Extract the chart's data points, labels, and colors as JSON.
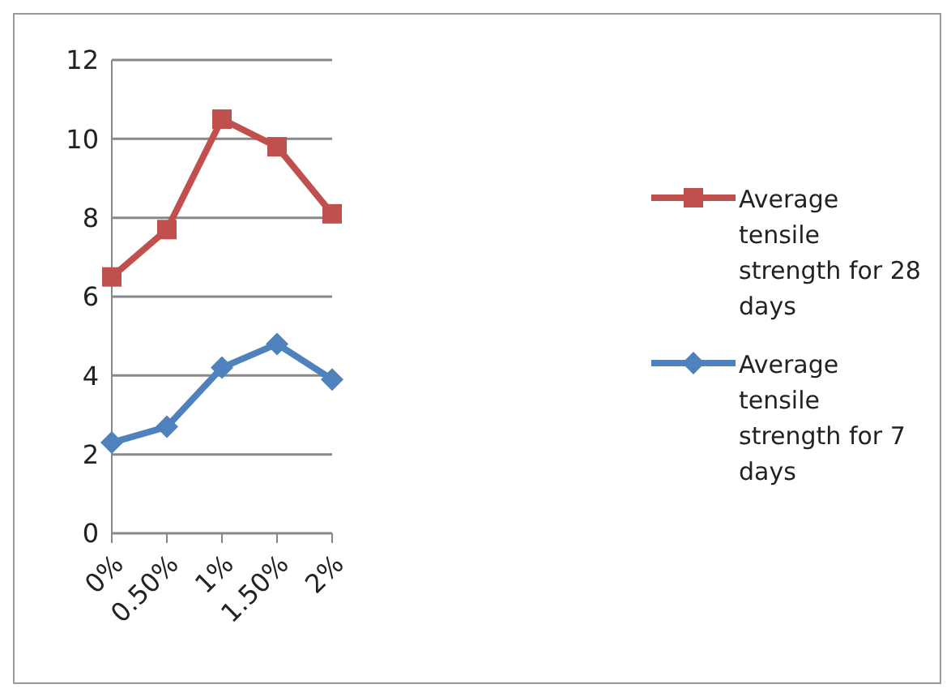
{
  "chart_data": {
    "type": "line",
    "categories": [
      "0%",
      "0.50%",
      "1%",
      "1.50%",
      "2%"
    ],
    "series": [
      {
        "name": "Average tensile strength for 28 days",
        "color": "#c0504d",
        "marker": "square",
        "values": [
          6.5,
          7.7,
          10.5,
          9.8,
          8.1
        ]
      },
      {
        "name": "Average tensile strength for 7 days",
        "color": "#4f81bd",
        "marker": "diamond",
        "values": [
          2.3,
          2.7,
          4.2,
          4.8,
          3.9
        ]
      }
    ],
    "ylim": [
      0,
      12
    ],
    "yticks": [
      0,
      2,
      4,
      6,
      8,
      10,
      12
    ],
    "grid": "y",
    "legend": "right",
    "line_style": "solid"
  }
}
